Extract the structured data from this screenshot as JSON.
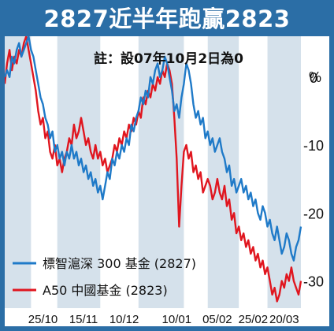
{
  "title": "2827近半年跑贏2823",
  "note": "註：設07年10月2日為0",
  "chart_data": {
    "type": "line",
    "ylabel": "%",
    "ylim": [
      -34,
      6
    ],
    "yticks": [
      0,
      -10,
      -20,
      -30
    ],
    "ytick_labels": [
      "0",
      "-10",
      "-20",
      "-30"
    ],
    "x_index_range": [
      0,
      124
    ],
    "x_tick_labels": [
      {
        "label": "25/10",
        "index": 16
      },
      {
        "label": "15/11",
        "index": 33
      },
      {
        "label": "10/12",
        "index": 50
      },
      {
        "label": "10/01",
        "index": 72
      },
      {
        "label": "05/02",
        "index": 89
      },
      {
        "label": "25/02",
        "index": 104
      },
      {
        "label": "20/03",
        "index": 117
      }
    ],
    "shaded_bands": [
      [
        0,
        11
      ],
      [
        22,
        40
      ],
      [
        56,
        75
      ],
      [
        85,
        98
      ],
      [
        110,
        124
      ]
    ],
    "series": [
      {
        "name": "標智滬深 300 基金 (2827)",
        "color": "#1f7ac8",
        "points": [
          [
            0,
            0
          ],
          [
            1,
            1
          ],
          [
            2,
            0
          ],
          [
            3,
            3
          ],
          [
            4,
            2
          ],
          [
            5,
            4
          ],
          [
            6,
            5
          ],
          [
            7,
            3
          ],
          [
            8,
            4
          ],
          [
            9,
            5
          ],
          [
            10,
            6
          ],
          [
            11,
            4
          ],
          [
            12,
            3
          ],
          [
            13,
            1
          ],
          [
            14,
            -1
          ],
          [
            15,
            -3
          ],
          [
            16,
            -4
          ],
          [
            17,
            -6
          ],
          [
            18,
            -7
          ],
          [
            19,
            -9
          ],
          [
            20,
            -8
          ],
          [
            21,
            -11
          ],
          [
            22,
            -10
          ],
          [
            23,
            -12
          ],
          [
            24,
            -11
          ],
          [
            25,
            -13
          ],
          [
            26,
            -11
          ],
          [
            27,
            -12
          ],
          [
            28,
            -10
          ],
          [
            29,
            -12
          ],
          [
            30,
            -11
          ],
          [
            31,
            -13
          ],
          [
            32,
            -12
          ],
          [
            33,
            -14
          ],
          [
            34,
            -13
          ],
          [
            35,
            -15
          ],
          [
            36,
            -14
          ],
          [
            37,
            -16
          ],
          [
            38,
            -15
          ],
          [
            39,
            -17
          ],
          [
            40,
            -16
          ],
          [
            41,
            -18
          ],
          [
            42,
            -16
          ],
          [
            43,
            -14
          ],
          [
            44,
            -15
          ],
          [
            45,
            -12
          ],
          [
            46,
            -13
          ],
          [
            47,
            -11
          ],
          [
            48,
            -12
          ],
          [
            49,
            -10
          ],
          [
            50,
            -11
          ],
          [
            51,
            -9
          ],
          [
            52,
            -10
          ],
          [
            53,
            -7
          ],
          [
            54,
            -8
          ],
          [
            55,
            -6
          ],
          [
            56,
            -5
          ],
          [
            57,
            -3
          ],
          [
            58,
            -4
          ],
          [
            59,
            -2
          ],
          [
            60,
            -3
          ],
          [
            61,
            0
          ],
          [
            62,
            -1
          ],
          [
            63,
            1
          ],
          [
            64,
            2
          ],
          [
            65,
            0
          ],
          [
            66,
            1
          ],
          [
            67,
            3
          ],
          [
            68,
            2
          ],
          [
            69,
            0
          ],
          [
            70,
            -2
          ],
          [
            71,
            -5
          ],
          [
            72,
            -4
          ],
          [
            73,
            -6
          ],
          [
            74,
            -3
          ],
          [
            75,
            -1
          ],
          [
            76,
            2
          ],
          [
            77,
            1
          ],
          [
            78,
            -1
          ],
          [
            79,
            -4
          ],
          [
            80,
            -6
          ],
          [
            81,
            -5
          ],
          [
            82,
            -7
          ],
          [
            83,
            -6
          ],
          [
            84,
            -9
          ],
          [
            85,
            -8
          ],
          [
            86,
            -10
          ],
          [
            87,
            -9
          ],
          [
            88,
            -11
          ],
          [
            89,
            -10
          ],
          [
            90,
            -9
          ],
          [
            91,
            -11
          ],
          [
            92,
            -12
          ],
          [
            93,
            -14
          ],
          [
            94,
            -13
          ],
          [
            95,
            -16
          ],
          [
            96,
            -15
          ],
          [
            97,
            -17
          ],
          [
            98,
            -16
          ],
          [
            99,
            -15
          ],
          [
            100,
            -17
          ],
          [
            101,
            -16
          ],
          [
            102,
            -18
          ],
          [
            103,
            -17
          ],
          [
            104,
            -19
          ],
          [
            105,
            -18
          ],
          [
            106,
            -20
          ],
          [
            107,
            -21
          ],
          [
            108,
            -19
          ],
          [
            109,
            -20
          ],
          [
            110,
            -22
          ],
          [
            111,
            -21
          ],
          [
            112,
            -23
          ],
          [
            113,
            -24
          ],
          [
            114,
            -22
          ],
          [
            115,
            -24
          ],
          [
            116,
            -26
          ],
          [
            117,
            -25
          ],
          [
            118,
            -23
          ],
          [
            119,
            -24
          ],
          [
            120,
            -26
          ],
          [
            121,
            -27
          ],
          [
            122,
            -25
          ],
          [
            123,
            -24
          ],
          [
            124,
            -22
          ]
        ]
      },
      {
        "name": "A50 中國基金 (2823)",
        "color": "#e0161f",
        "points": [
          [
            0,
            -1
          ],
          [
            1,
            2
          ],
          [
            2,
            4
          ],
          [
            3,
            1
          ],
          [
            4,
            3
          ],
          [
            5,
            2
          ],
          [
            6,
            4
          ],
          [
            7,
            3
          ],
          [
            8,
            5
          ],
          [
            9,
            6
          ],
          [
            10,
            4
          ],
          [
            11,
            2
          ],
          [
            12,
            0
          ],
          [
            13,
            -2
          ],
          [
            14,
            -5
          ],
          [
            15,
            -7
          ],
          [
            16,
            -6
          ],
          [
            17,
            -9
          ],
          [
            18,
            -8
          ],
          [
            19,
            -11
          ],
          [
            20,
            -12
          ],
          [
            21,
            -10
          ],
          [
            22,
            -13
          ],
          [
            23,
            -12
          ],
          [
            24,
            -14
          ],
          [
            25,
            -12
          ],
          [
            26,
            -11
          ],
          [
            27,
            -9
          ],
          [
            28,
            -10
          ],
          [
            29,
            -7
          ],
          [
            30,
            -9
          ],
          [
            31,
            -8
          ],
          [
            32,
            -6
          ],
          [
            33,
            -8
          ],
          [
            34,
            -10
          ],
          [
            35,
            -9
          ],
          [
            36,
            -11
          ],
          [
            37,
            -12
          ],
          [
            38,
            -10
          ],
          [
            39,
            -12
          ],
          [
            40,
            -11
          ],
          [
            41,
            -13
          ],
          [
            42,
            -12
          ],
          [
            43,
            -14
          ],
          [
            44,
            -13
          ],
          [
            45,
            -12
          ],
          [
            46,
            -10
          ],
          [
            47,
            -11
          ],
          [
            48,
            -9
          ],
          [
            49,
            -10
          ],
          [
            50,
            -8
          ],
          [
            51,
            -9
          ],
          [
            52,
            -7
          ],
          [
            53,
            -8
          ],
          [
            54,
            -6
          ],
          [
            55,
            -7
          ],
          [
            56,
            -5
          ],
          [
            57,
            -6
          ],
          [
            58,
            -3
          ],
          [
            59,
            -4
          ],
          [
            60,
            -2
          ],
          [
            61,
            -3
          ],
          [
            62,
            -1
          ],
          [
            63,
            -2
          ],
          [
            64,
            0
          ],
          [
            65,
            -1
          ],
          [
            66,
            1
          ],
          [
            67,
            0
          ],
          [
            68,
            2
          ],
          [
            69,
            1
          ],
          [
            70,
            -1
          ],
          [
            71,
            -6
          ],
          [
            72,
            -12
          ],
          [
            73,
            -22
          ],
          [
            74,
            -16
          ],
          [
            75,
            -11
          ],
          [
            76,
            -10
          ],
          [
            77,
            -12
          ],
          [
            78,
            -11
          ],
          [
            79,
            -14
          ],
          [
            80,
            -13
          ],
          [
            81,
            -15
          ],
          [
            82,
            -14
          ],
          [
            83,
            -17
          ],
          [
            84,
            -16
          ],
          [
            85,
            -15
          ],
          [
            86,
            -16
          ],
          [
            87,
            -18
          ],
          [
            88,
            -17
          ],
          [
            89,
            -15
          ],
          [
            90,
            -17
          ],
          [
            91,
            -18
          ],
          [
            92,
            -16
          ],
          [
            93,
            -19
          ],
          [
            94,
            -18
          ],
          [
            95,
            -21
          ],
          [
            96,
            -20
          ],
          [
            97,
            -23
          ],
          [
            98,
            -22
          ],
          [
            99,
            -24
          ],
          [
            100,
            -23
          ],
          [
            101,
            -25
          ],
          [
            102,
            -24
          ],
          [
            103,
            -26
          ],
          [
            104,
            -25
          ],
          [
            105,
            -27
          ],
          [
            106,
            -26
          ],
          [
            107,
            -28
          ],
          [
            108,
            -27
          ],
          [
            109,
            -29
          ],
          [
            110,
            -28
          ],
          [
            111,
            -30
          ],
          [
            112,
            -32
          ],
          [
            113,
            -31
          ],
          [
            114,
            -33
          ],
          [
            115,
            -32
          ],
          [
            116,
            -30
          ],
          [
            117,
            -31
          ],
          [
            118,
            -29
          ],
          [
            119,
            -30
          ],
          [
            120,
            -28
          ],
          [
            121,
            -30
          ],
          [
            122,
            -31
          ],
          [
            123,
            -32
          ],
          [
            124,
            -30
          ]
        ]
      }
    ]
  }
}
